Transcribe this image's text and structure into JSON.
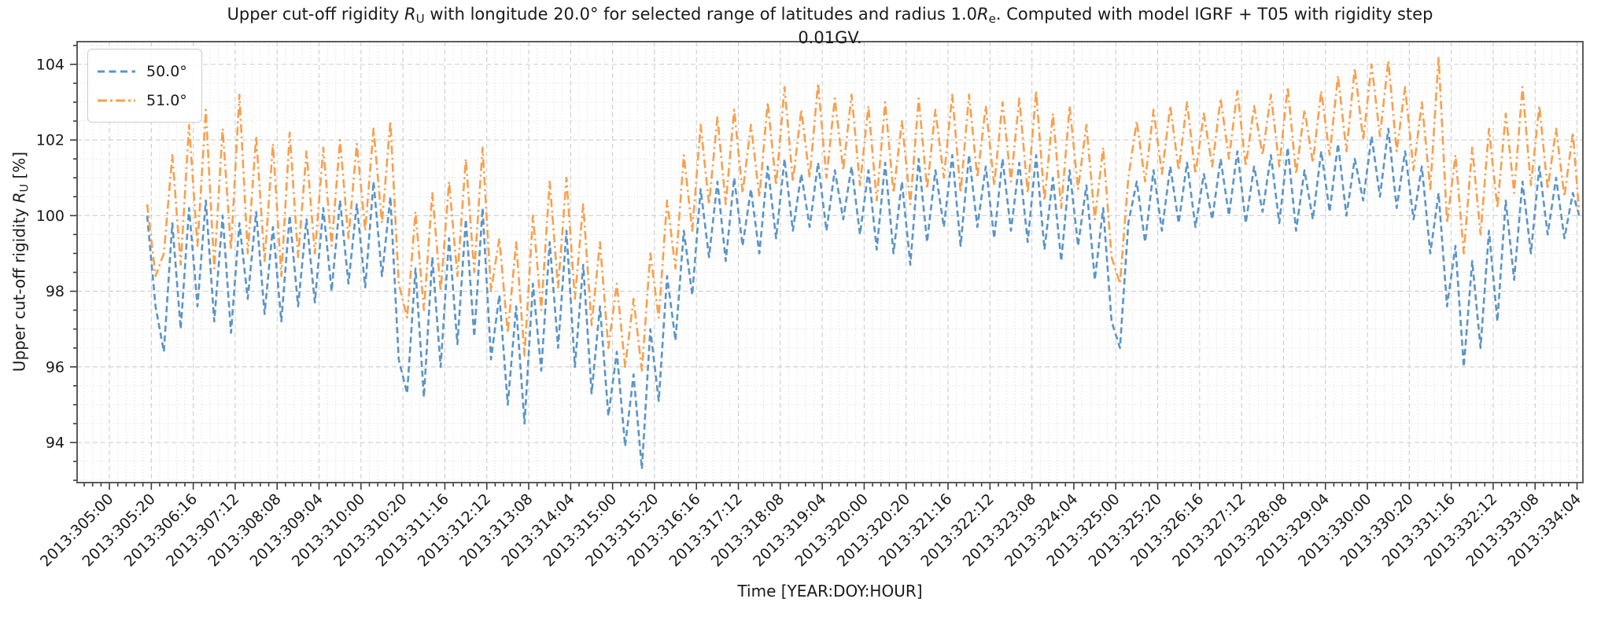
{
  "chart_data": {
    "type": "line",
    "title": "Upper cut-off rigidity R_U with longitude 20.0° for selected range of latitudes and radius 1.0R_e. Computed with model IGRF + T05 with rigidity step 0.01GV.",
    "title_parts": [
      {
        "t": "Upper cut-off rigidity "
      },
      {
        "t": "R",
        "i": 1
      },
      {
        "t": "U",
        "s": 1
      },
      {
        "t": " with longitude 20.0° for selected range of latitudes and radius 1.0"
      },
      {
        "t": "R",
        "i": 1
      },
      {
        "t": "e",
        "s": 1
      },
      {
        "t": ". Computed with model IGRF + T05 with rigidity step "
      },
      {
        "br": 1
      },
      {
        "t": "0.01GV."
      }
    ],
    "xlabel": "Time [YEAR:DOY:HOUR]",
    "ylabel_parts": [
      {
        "t": "Upper cut-off rigidity "
      },
      {
        "t": "R",
        "i": 1
      },
      {
        "t": "U",
        "s": 1
      },
      {
        "t": " [%]"
      }
    ],
    "ylabel": "Upper cut-off rigidity R_U [%]",
    "ylim": [
      92.94,
      104.6
    ],
    "yticks": [
      94,
      96,
      98,
      100,
      102,
      104
    ],
    "y_minor_step": 0.5,
    "xlim_hours": [
      -15.4,
      702.8
    ],
    "x_unit": "hours since 2013:305:00",
    "x_tick_hours": [
      0,
      20,
      40,
      60,
      80,
      100,
      120,
      140,
      160,
      180,
      200,
      220,
      240,
      260,
      280,
      300,
      320,
      340,
      360,
      380,
      400,
      420,
      440,
      460,
      480,
      500,
      520,
      540,
      560,
      580,
      600,
      620,
      640,
      660,
      680,
      700
    ],
    "x_tick_labels": [
      "2013:305:00",
      "2013:305:20",
      "2013:306:16",
      "2013:307:12",
      "2013:308:08",
      "2013:309:04",
      "2013:310:00",
      "2013:310:20",
      "2013:311:16",
      "2013:312:12",
      "2013:313:08",
      "2013:314:04",
      "2013:315:00",
      "2013:315:20",
      "2013:316:16",
      "2013:317:12",
      "2013:318:08",
      "2013:319:04",
      "2013:320:00",
      "2013:320:20",
      "2013:321:16",
      "2013:322:12",
      "2013:323:08",
      "2013:324:04",
      "2013:325:00",
      "2013:325:20",
      "2013:326:16",
      "2013:327:12",
      "2013:328:08",
      "2013:329:04",
      "2013:330:00",
      "2013:330:20",
      "2013:331:16",
      "2013:332:12",
      "2013:333:08",
      "2013:334:04"
    ],
    "x_minor_step_hours": 4,
    "grid": true,
    "legend_position": "upper left",
    "hours": [
      18,
      22,
      26,
      30,
      34,
      38,
      42,
      46,
      50,
      54,
      58,
      62,
      66,
      70,
      74,
      78,
      82,
      86,
      90,
      94,
      98,
      102,
      106,
      110,
      114,
      118,
      122,
      126,
      130,
      134,
      138,
      142,
      146,
      150,
      154,
      158,
      162,
      166,
      170,
      174,
      178,
      182,
      186,
      190,
      194,
      198,
      202,
      206,
      210,
      214,
      218,
      222,
      226,
      230,
      234,
      238,
      242,
      246,
      250,
      254,
      258,
      262,
      266,
      270,
      274,
      278,
      282,
      286,
      290,
      294,
      298,
      302,
      306,
      310,
      314,
      318,
      322,
      326,
      330,
      334,
      338,
      342,
      346,
      350,
      354,
      358,
      362,
      366,
      370,
      374,
      378,
      382,
      386,
      390,
      394,
      398,
      402,
      406,
      410,
      414,
      418,
      422,
      426,
      430,
      434,
      438,
      442,
      446,
      450,
      454,
      458,
      462,
      466,
      470,
      474,
      478,
      482,
      486,
      490,
      494,
      498,
      502,
      506,
      510,
      514,
      518,
      522,
      526,
      530,
      534,
      538,
      542,
      546,
      550,
      554,
      558,
      562,
      566,
      570,
      574,
      578,
      582,
      586,
      590,
      594,
      598,
      602,
      606,
      610,
      614,
      618,
      622,
      626,
      630,
      634,
      638,
      642,
      646,
      650,
      654,
      658,
      662,
      666,
      670,
      674,
      678,
      682,
      686,
      690,
      694,
      698,
      701
    ],
    "series": [
      {
        "name": "50.0°",
        "color": "#5b94c5",
        "linestyle": "dashed",
        "values": [
          100.0,
          97.6,
          96.4,
          99.8,
          97.0,
          100.2,
          97.6,
          100.4,
          97.2,
          100.0,
          96.9,
          99.8,
          97.8,
          100.1,
          97.4,
          99.7,
          97.2,
          100.0,
          97.6,
          99.9,
          97.7,
          100.2,
          98.0,
          100.4,
          98.2,
          100.3,
          98.1,
          100.9,
          98.4,
          100.5,
          96.2,
          95.3,
          98.6,
          95.2,
          98.9,
          96.0,
          99.4,
          96.6,
          99.9,
          96.8,
          100.2,
          96.2,
          97.9,
          95.0,
          97.6,
          94.5,
          98.2,
          95.9,
          99.3,
          96.5,
          99.6,
          96.0,
          98.7,
          95.3,
          97.6,
          94.7,
          96.4,
          93.9,
          95.8,
          93.3,
          97.0,
          95.1,
          98.4,
          96.7,
          99.6,
          97.9,
          100.7,
          98.9,
          100.9,
          98.8,
          101.0,
          99.2,
          100.7,
          99.0,
          101.3,
          99.4,
          101.5,
          99.6,
          101.1,
          99.7,
          101.4,
          99.6,
          101.2,
          99.9,
          101.3,
          99.5,
          101.2,
          99.1,
          101.4,
          99.0,
          100.9,
          98.7,
          101.5,
          99.3,
          101.2,
          99.7,
          101.6,
          99.2,
          101.6,
          99.7,
          101.3,
          99.4,
          101.5,
          99.6,
          101.4,
          99.3,
          101.6,
          99.1,
          101.0,
          98.8,
          101.2,
          99.2,
          100.8,
          98.3,
          100.2,
          97.2,
          96.5,
          99.8,
          100.9,
          99.3,
          101.2,
          99.6,
          101.3,
          99.8,
          101.4,
          99.7,
          101.1,
          99.9,
          101.5,
          100.0,
          101.7,
          99.8,
          101.3,
          100.1,
          101.6,
          99.8,
          101.8,
          99.6,
          101.2,
          99.9,
          101.7,
          100.1,
          101.9,
          100.0,
          101.5,
          100.4,
          102.1,
          100.5,
          102.3,
          100.2,
          101.7,
          99.9,
          101.3,
          99.0,
          100.6,
          97.6,
          99.2,
          96.0,
          98.8,
          96.5,
          99.6,
          97.2,
          100.4,
          98.3,
          100.9,
          99.0,
          101.3,
          99.5,
          101.0,
          99.4,
          100.6,
          100.0
        ]
      },
      {
        "name": "51.0°",
        "color": "#f7a04e",
        "linestyle": "dashdot",
        "values": [
          100.3,
          98.4,
          99.0,
          101.6,
          98.7,
          102.4,
          99.2,
          102.8,
          98.6,
          102.3,
          99.1,
          103.2,
          99.0,
          102.1,
          98.8,
          101.9,
          98.4,
          102.2,
          98.9,
          101.7,
          99.0,
          101.8,
          99.2,
          102.0,
          99.4,
          101.9,
          99.6,
          102.3,
          99.8,
          102.5,
          98.2,
          97.3,
          100.1,
          97.5,
          100.6,
          98.0,
          100.9,
          98.4,
          101.5,
          98.5,
          101.8,
          98.0,
          99.4,
          96.9,
          99.3,
          96.3,
          100.0,
          97.5,
          100.9,
          98.1,
          101.0,
          97.8,
          100.3,
          97.1,
          99.3,
          96.5,
          98.2,
          96.0,
          97.8,
          95.9,
          99.0,
          97.3,
          100.4,
          98.6,
          101.6,
          99.6,
          102.4,
          100.3,
          102.6,
          100.3,
          102.8,
          100.6,
          102.4,
          100.5,
          103.0,
          100.8,
          103.4,
          100.9,
          102.8,
          101.0,
          103.5,
          101.0,
          103.1,
          101.2,
          103.2,
          100.8,
          102.9,
          100.4,
          103.0,
          100.6,
          102.5,
          100.3,
          103.1,
          100.7,
          102.8,
          101.0,
          103.2,
          100.6,
          103.2,
          101.0,
          102.9,
          100.8,
          103.0,
          100.9,
          103.1,
          100.6,
          103.3,
          100.4,
          102.7,
          100.2,
          102.9,
          100.7,
          102.4,
          99.9,
          101.8,
          98.9,
          98.2,
          101.0,
          102.5,
          100.9,
          102.8,
          101.1,
          102.9,
          101.2,
          103.0,
          101.1,
          102.7,
          101.3,
          103.1,
          101.5,
          103.3,
          101.3,
          102.9,
          101.6,
          103.2,
          101.3,
          103.4,
          101.1,
          102.8,
          101.4,
          103.3,
          101.6,
          103.7,
          101.7,
          103.9,
          102.0,
          104.0,
          102.1,
          104.1,
          101.7,
          103.4,
          101.2,
          103.0,
          100.7,
          104.2,
          99.8,
          101.6,
          99.0,
          101.8,
          99.5,
          102.3,
          100.2,
          102.7,
          100.6,
          103.4,
          100.8,
          102.9,
          100.7,
          102.3,
          100.5,
          102.2,
          100.1
        ]
      }
    ]
  },
  "legend": {
    "items": [
      {
        "label": "50.0°"
      },
      {
        "label": "51.0°"
      }
    ]
  }
}
